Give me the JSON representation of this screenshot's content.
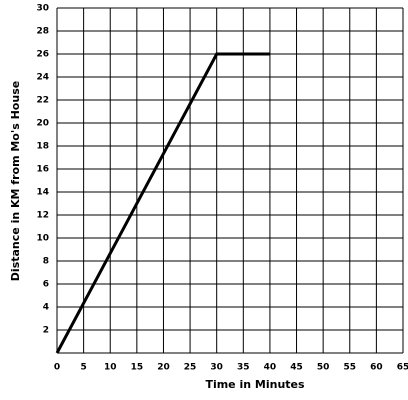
{
  "chart_data": {
    "type": "line",
    "x_label": "Time in Minutes",
    "y_label": "Distance in KM from Mo's House",
    "x": [
      0,
      30,
      40
    ],
    "values": [
      0,
      26,
      26
    ],
    "color": "#000000",
    "xlim": [
      0,
      65
    ],
    "xticks": [
      0,
      5,
      10,
      15,
      20,
      25,
      30,
      35,
      40,
      45,
      50,
      55,
      60,
      65
    ],
    "ylim": [
      0,
      30
    ],
    "yticks": [
      2,
      4,
      6,
      8,
      10,
      12,
      14,
      16,
      18,
      20,
      22,
      24,
      26,
      28,
      30
    ],
    "grid": true
  }
}
